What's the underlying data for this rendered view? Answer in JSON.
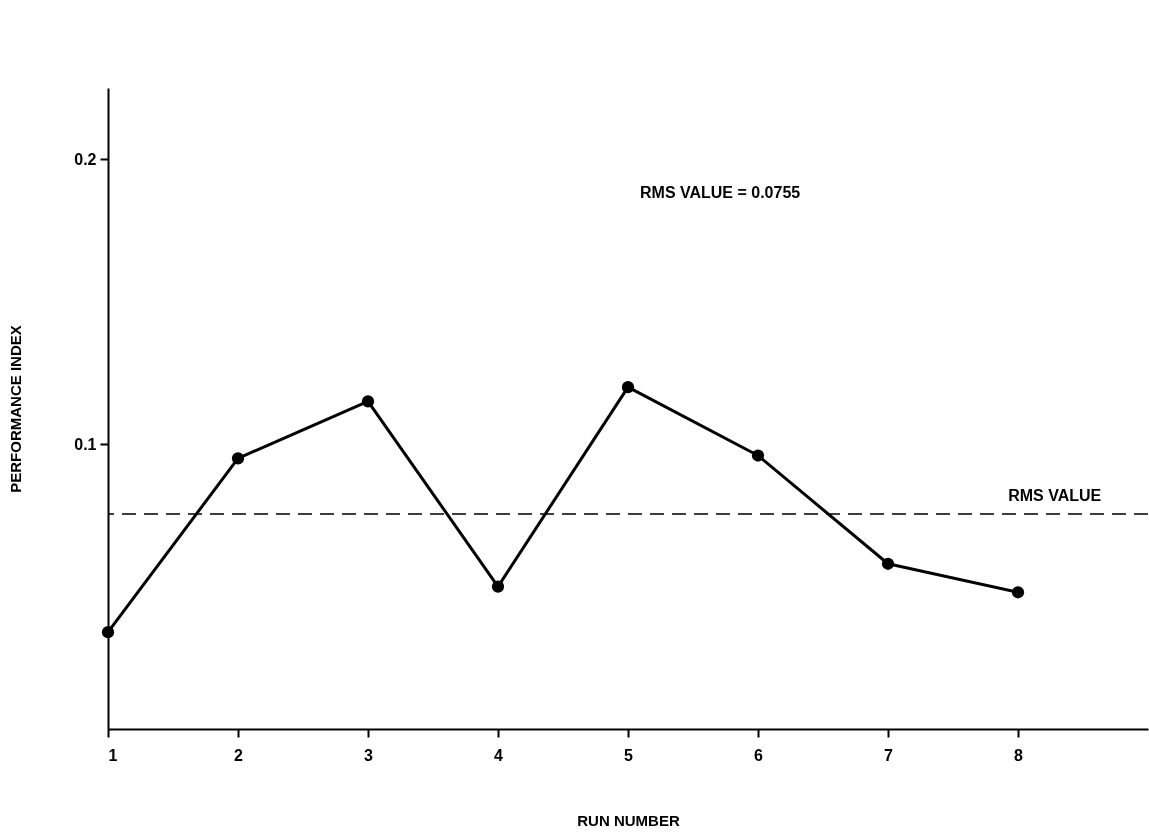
{
  "chart_data": {
    "type": "line",
    "xlabel": "RUN NUMBER",
    "ylabel": "PERFORMANCE INDEX",
    "x": [
      1,
      2,
      3,
      4,
      5,
      6,
      7,
      8
    ],
    "series": [
      {
        "color": "#000000",
        "values": [
          0.034,
          0.095,
          0.115,
          0.05,
          0.12,
          0.096,
          0.058,
          0.048
        ]
      }
    ],
    "xlim": [
      1,
      9
    ],
    "xticks": [
      1,
      2,
      3,
      4,
      5,
      6,
      7,
      8
    ],
    "ylim": [
      0,
      0.225
    ],
    "yticks": [
      {
        "value": 0.1,
        "label": "0.1"
      },
      {
        "value": 0.2,
        "label": "0.2"
      }
    ],
    "marker": "circle",
    "line_style": "solid",
    "grid": false,
    "ref_lines": [
      {
        "axis": "y",
        "value": 0.0755,
        "label": "RMS VALUE",
        "line_style": "dashed",
        "color": "#000000"
      }
    ],
    "annotations": [
      "RMS VALUE = 0.0755"
    ]
  }
}
